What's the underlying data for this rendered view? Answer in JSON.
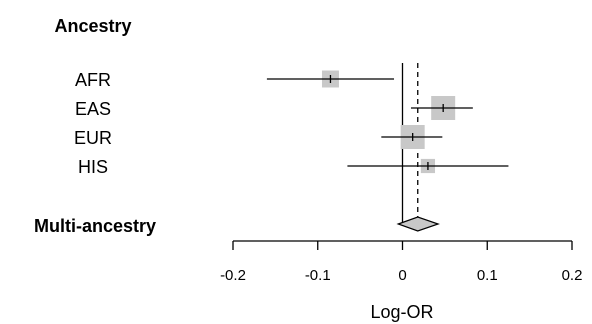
{
  "chart_data": {
    "type": "forest",
    "headings": {
      "group": "Ancestry",
      "pooled": "Multi-ancestry"
    },
    "xlabel": "Log-OR",
    "xlim": [
      -0.2,
      0.2
    ],
    "xticks": [
      "-0.2",
      "-0.1",
      "0",
      "0.1",
      "0.2"
    ],
    "tick_values": [
      -0.2,
      -0.1,
      0,
      0.1,
      0.2
    ],
    "reference_line": 0,
    "pooled_estimate": {
      "estimate": 0.018,
      "lower": -0.005,
      "upper": 0.042
    },
    "rows": [
      {
        "label": "AFR",
        "estimate": -0.085,
        "lower": -0.16,
        "upper": -0.01,
        "weight": 0.5
      },
      {
        "label": "EAS",
        "estimate": 0.048,
        "lower": 0.01,
        "upper": 0.083,
        "weight": 1.0
      },
      {
        "label": "EUR",
        "estimate": 0.012,
        "lower": -0.025,
        "upper": 0.047,
        "weight": 1.0
      },
      {
        "label": "HIS",
        "estimate": 0.03,
        "lower": -0.065,
        "upper": 0.125,
        "weight": 0.35
      }
    ],
    "marker_color": "#c8c8c8",
    "line_color": "#000000"
  }
}
